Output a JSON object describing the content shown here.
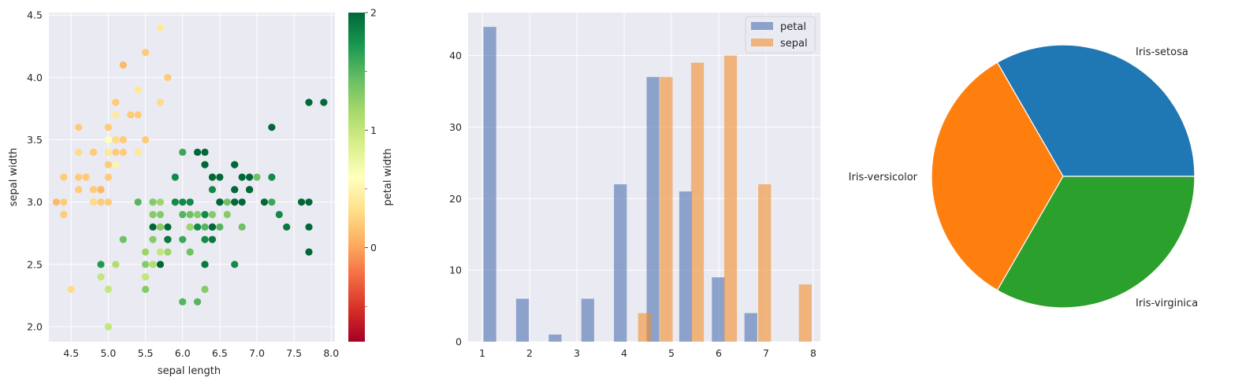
{
  "chart_data": [
    {
      "type": "scatter",
      "xlabel": "sepal length",
      "ylabel": "sepal width",
      "xlim": [
        4.2,
        8.05
      ],
      "ylim": [
        1.88,
        4.52
      ],
      "xticks": [
        4.5,
        5.0,
        5.5,
        6.0,
        6.5,
        7.0,
        7.5,
        8.0
      ],
      "xtick_labels": [
        "4.5",
        "5.0",
        "5.5",
        "6.0",
        "6.5",
        "7.0",
        "7.5",
        "8.0"
      ],
      "yticks": [
        2.0,
        2.5,
        3.0,
        3.5,
        4.0,
        4.5
      ],
      "ytick_labels": [
        "2.0",
        "2.5",
        "3.0",
        "3.5",
        "4.0",
        "4.5"
      ],
      "grid": true,
      "colormap": "RdYlGn",
      "colorbar": {
        "label": "petal width",
        "range": [
          -0.8,
          2.0
        ],
        "ticks": [
          0,
          1,
          2
        ],
        "tick_labels": [
          "0",
          "1",
          "2"
        ]
      },
      "points": [
        [
          5.1,
          3.5,
          0.2
        ],
        [
          4.9,
          3.0,
          0.2
        ],
        [
          4.7,
          3.2,
          0.2
        ],
        [
          4.6,
          3.1,
          0.2
        ],
        [
          5.0,
          3.6,
          0.2
        ],
        [
          5.4,
          3.9,
          0.4
        ],
        [
          4.6,
          3.4,
          0.3
        ],
        [
          5.0,
          3.4,
          0.2
        ],
        [
          4.4,
          2.9,
          0.2
        ],
        [
          4.9,
          3.1,
          0.1
        ],
        [
          5.4,
          3.7,
          0.2
        ],
        [
          4.8,
          3.4,
          0.2
        ],
        [
          4.8,
          3.0,
          0.1
        ],
        [
          4.3,
          3.0,
          0.1
        ],
        [
          5.8,
          4.0,
          0.2
        ],
        [
          5.7,
          4.4,
          0.4
        ],
        [
          5.4,
          3.9,
          0.4
        ],
        [
          5.1,
          3.5,
          0.3
        ],
        [
          5.7,
          3.8,
          0.3
        ],
        [
          5.1,
          3.8,
          0.3
        ],
        [
          5.4,
          3.4,
          0.2
        ],
        [
          5.1,
          3.7,
          0.4
        ],
        [
          4.6,
          3.6,
          0.2
        ],
        [
          5.1,
          3.3,
          0.5
        ],
        [
          4.8,
          3.4,
          0.2
        ],
        [
          5.0,
          3.0,
          0.2
        ],
        [
          5.0,
          3.4,
          0.4
        ],
        [
          5.2,
          3.5,
          0.2
        ],
        [
          5.2,
          3.4,
          0.2
        ],
        [
          4.7,
          3.2,
          0.2
        ],
        [
          4.8,
          3.1,
          0.2
        ],
        [
          5.4,
          3.4,
          0.4
        ],
        [
          5.2,
          4.1,
          0.1
        ],
        [
          5.5,
          4.2,
          0.2
        ],
        [
          4.9,
          3.1,
          0.1
        ],
        [
          5.0,
          3.2,
          0.2
        ],
        [
          5.5,
          3.5,
          0.2
        ],
        [
          4.9,
          3.1,
          0.1
        ],
        [
          4.4,
          3.0,
          0.2
        ],
        [
          5.1,
          3.4,
          0.2
        ],
        [
          5.0,
          3.5,
          0.3
        ],
        [
          4.5,
          2.3,
          0.3
        ],
        [
          4.4,
          3.2,
          0.2
        ],
        [
          5.0,
          3.5,
          0.6
        ],
        [
          5.1,
          3.8,
          0.4
        ],
        [
          4.8,
          3.0,
          0.3
        ],
        [
          5.1,
          3.8,
          0.2
        ],
        [
          4.6,
          3.2,
          0.2
        ],
        [
          5.3,
          3.7,
          0.2
        ],
        [
          5.0,
          3.3,
          0.2
        ],
        [
          7.0,
          3.2,
          1.4
        ],
        [
          6.4,
          3.2,
          1.5
        ],
        [
          6.9,
          3.1,
          1.5
        ],
        [
          5.5,
          2.3,
          1.3
        ],
        [
          6.5,
          2.8,
          1.5
        ],
        [
          5.7,
          2.8,
          1.3
        ],
        [
          6.3,
          3.3,
          1.6
        ],
        [
          4.9,
          2.4,
          1.0
        ],
        [
          6.6,
          2.9,
          1.3
        ],
        [
          5.2,
          2.7,
          1.4
        ],
        [
          5.0,
          2.0,
          1.0
        ],
        [
          5.9,
          3.0,
          1.5
        ],
        [
          6.0,
          2.2,
          1.0
        ],
        [
          6.1,
          2.9,
          1.4
        ],
        [
          5.6,
          2.9,
          1.3
        ],
        [
          6.7,
          3.1,
          1.4
        ],
        [
          5.6,
          3.0,
          1.5
        ],
        [
          5.8,
          2.7,
          1.0
        ],
        [
          6.2,
          2.2,
          1.5
        ],
        [
          5.6,
          2.5,
          1.1
        ],
        [
          5.9,
          3.2,
          1.8
        ],
        [
          6.1,
          2.8,
          1.3
        ],
        [
          6.3,
          2.5,
          1.5
        ],
        [
          6.1,
          2.8,
          1.2
        ],
        [
          6.4,
          2.9,
          1.3
        ],
        [
          6.6,
          3.0,
          1.4
        ],
        [
          6.8,
          2.8,
          1.4
        ],
        [
          6.7,
          3.0,
          1.7
        ],
        [
          6.0,
          2.9,
          1.5
        ],
        [
          5.7,
          2.6,
          1.0
        ],
        [
          5.5,
          2.4,
          1.1
        ],
        [
          5.5,
          2.4,
          1.0
        ],
        [
          5.8,
          2.7,
          1.2
        ],
        [
          6.0,
          2.7,
          1.6
        ],
        [
          5.4,
          3.0,
          1.5
        ],
        [
          6.0,
          3.4,
          1.6
        ],
        [
          6.7,
          3.1,
          1.5
        ],
        [
          6.3,
          2.3,
          1.3
        ],
        [
          5.6,
          3.0,
          1.3
        ],
        [
          5.5,
          2.5,
          1.3
        ],
        [
          5.5,
          2.6,
          1.2
        ],
        [
          6.1,
          3.0,
          1.4
        ],
        [
          5.8,
          2.6,
          1.2
        ],
        [
          5.0,
          2.3,
          1.0
        ],
        [
          5.6,
          2.7,
          1.3
        ],
        [
          5.7,
          3.0,
          1.2
        ],
        [
          5.7,
          2.9,
          1.3
        ],
        [
          6.2,
          2.9,
          1.3
        ],
        [
          5.1,
          2.5,
          1.1
        ],
        [
          5.7,
          2.8,
          1.3
        ],
        [
          6.3,
          3.3,
          2.5
        ],
        [
          5.8,
          2.7,
          1.9
        ],
        [
          7.1,
          3.0,
          2.1
        ],
        [
          6.3,
          2.9,
          1.8
        ],
        [
          6.5,
          3.0,
          2.2
        ],
        [
          7.6,
          3.0,
          2.1
        ],
        [
          4.9,
          2.5,
          1.7
        ],
        [
          7.3,
          2.9,
          1.8
        ],
        [
          6.7,
          2.5,
          1.8
        ],
        [
          7.2,
          3.6,
          2.5
        ],
        [
          6.5,
          3.2,
          2.0
        ],
        [
          6.4,
          2.7,
          1.9
        ],
        [
          6.8,
          3.0,
          2.1
        ],
        [
          5.7,
          2.5,
          2.0
        ],
        [
          5.8,
          2.8,
          2.4
        ],
        [
          6.4,
          3.2,
          2.3
        ],
        [
          6.5,
          3.0,
          1.8
        ],
        [
          7.7,
          3.8,
          2.2
        ],
        [
          7.7,
          2.6,
          2.3
        ],
        [
          6.0,
          2.2,
          1.5
        ],
        [
          6.9,
          3.2,
          2.3
        ],
        [
          5.6,
          2.8,
          2.0
        ],
        [
          7.7,
          2.8,
          2.0
        ],
        [
          6.3,
          2.7,
          1.8
        ],
        [
          6.7,
          3.3,
          2.1
        ],
        [
          7.2,
          3.2,
          1.8
        ],
        [
          6.2,
          2.8,
          1.8
        ],
        [
          6.1,
          3.0,
          1.8
        ],
        [
          6.4,
          2.8,
          2.1
        ],
        [
          7.2,
          3.0,
          1.6
        ],
        [
          7.4,
          2.8,
          1.9
        ],
        [
          7.9,
          3.8,
          2.0
        ],
        [
          6.4,
          2.8,
          2.2
        ],
        [
          6.3,
          2.8,
          1.5
        ],
        [
          6.1,
          2.6,
          1.4
        ],
        [
          7.7,
          3.0,
          2.3
        ],
        [
          6.3,
          3.4,
          2.4
        ],
        [
          6.4,
          3.1,
          1.8
        ],
        [
          6.0,
          3.0,
          1.8
        ],
        [
          6.9,
          3.1,
          2.1
        ],
        [
          6.7,
          3.1,
          2.4
        ],
        [
          6.9,
          3.1,
          2.3
        ],
        [
          5.8,
          2.7,
          1.9
        ],
        [
          6.8,
          3.2,
          2.3
        ],
        [
          6.7,
          3.3,
          2.5
        ],
        [
          6.7,
          3.0,
          2.3
        ],
        [
          6.3,
          2.5,
          1.9
        ],
        [
          6.5,
          3.0,
          2.0
        ],
        [
          6.2,
          3.4,
          2.3
        ],
        [
          5.9,
          3.0,
          1.8
        ]
      ]
    },
    {
      "type": "bar",
      "xlim": [
        0.7,
        8.15
      ],
      "ylim": [
        0,
        46
      ],
      "xticks": [
        1,
        2,
        3,
        4,
        5,
        6,
        7,
        8
      ],
      "xtick_labels": [
        "1",
        "2",
        "3",
        "4",
        "5",
        "6",
        "7",
        "8"
      ],
      "yticks": [
        0,
        10,
        20,
        30,
        40
      ],
      "ytick_labels": [
        "0",
        "10",
        "20",
        "30",
        "40"
      ],
      "grid": true,
      "legend": "top-right",
      "series": [
        {
          "name": "petal",
          "color": "#4c72b0",
          "x": [
            1.16,
            1.85,
            2.54,
            3.23,
            3.92,
            4.61,
            5.3,
            5.99,
            6.68
          ],
          "values": [
            44,
            6,
            1,
            6,
            22,
            37,
            21,
            9,
            4
          ]
        },
        {
          "name": "sepal",
          "color": "#f28e2b",
          "x": [
            4.43,
            4.89,
            5.55,
            6.25,
            6.97,
            7.83
          ],
          "values": [
            4,
            37,
            39,
            40,
            22,
            8
          ]
        }
      ]
    },
    {
      "type": "pie",
      "labels": [
        "Iris-setosa",
        "Iris-versicolor",
        "Iris-virginica"
      ],
      "values": [
        50,
        50,
        50
      ],
      "colors": [
        "#1f77b4",
        "#ff7f0e",
        "#2ca02c"
      ]
    }
  ]
}
